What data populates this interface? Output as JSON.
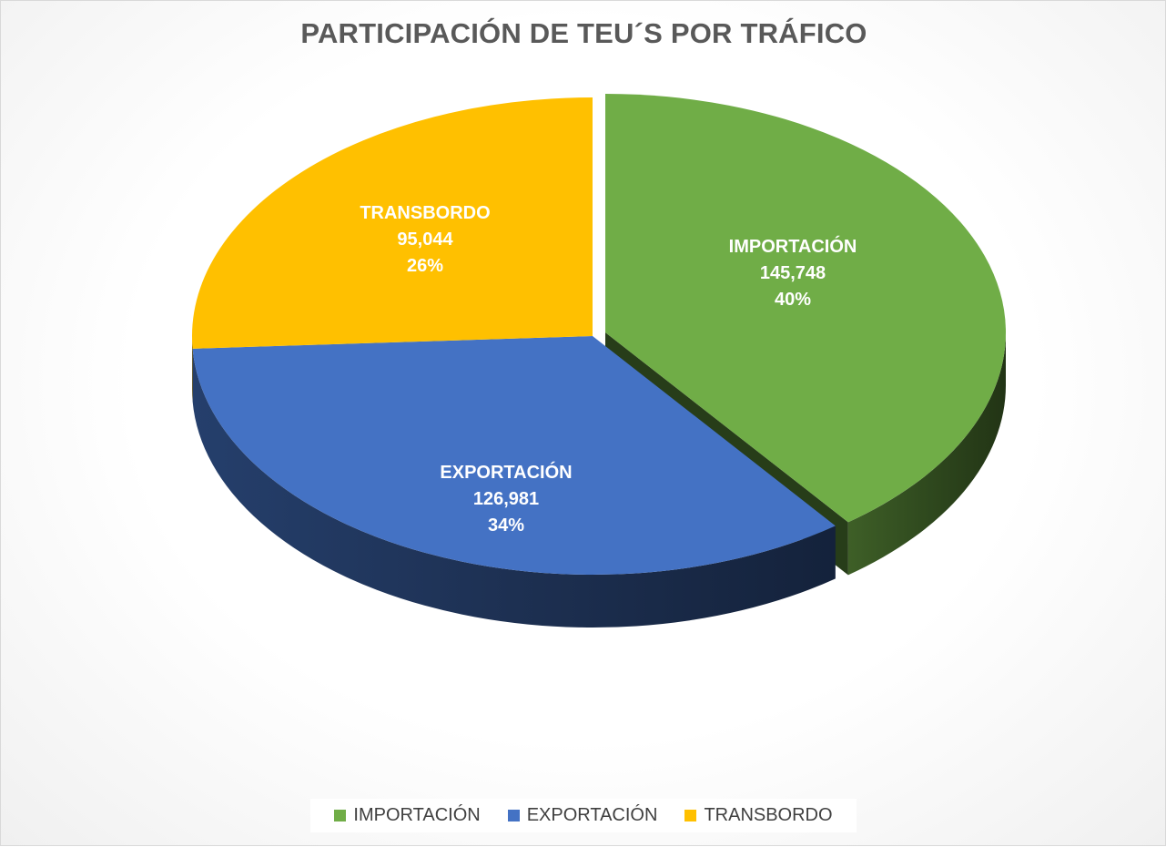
{
  "chart_data": {
    "type": "pie",
    "title": "PARTICIPACIÓN DE TEU´S POR TRÁFICO",
    "legend_position": "bottom",
    "slices": [
      {
        "label": "IMPORTACIÓN",
        "value": 145748,
        "value_text": "145,748",
        "percent_text": "40%",
        "color": "#70ad47",
        "exploded": true
      },
      {
        "label": "EXPORTACIÓN",
        "value": 126981,
        "value_text": "126,981",
        "percent_text": "34%",
        "color": "#4472c4",
        "exploded": false
      },
      {
        "label": "TRANSBORDO",
        "value": 95044,
        "value_text": "95,044",
        "percent_text": "26%",
        "color": "#ffc000",
        "exploded": false
      }
    ]
  }
}
